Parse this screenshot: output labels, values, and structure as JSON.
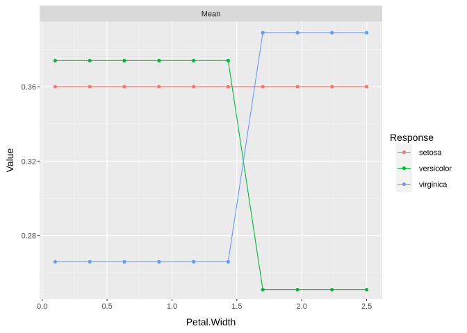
{
  "chart_data": {
    "type": "line",
    "facet_label": "Mean",
    "xlabel": "Petal.Width",
    "ylabel": "Value",
    "x": [
      0.1,
      0.367,
      0.633,
      0.9,
      1.167,
      1.433,
      1.7,
      1.967,
      2.233,
      2.5
    ],
    "xlim": [
      -0.02,
      2.62
    ],
    "ylim": [
      0.246,
      0.395
    ],
    "x_ticks": [
      0.0,
      0.5,
      1.0,
      1.5,
      2.0,
      2.5
    ],
    "x_tick_labels": [
      "0.0",
      "0.5",
      "1.0",
      "1.5",
      "2.0",
      "2.5"
    ],
    "y_ticks": [
      0.28,
      0.32,
      0.36
    ],
    "y_tick_labels": [
      "0.28",
      "0.32",
      "0.36"
    ],
    "grid": true,
    "legend": {
      "title": "Response",
      "position": "right"
    },
    "series": [
      {
        "name": "setosa",
        "color": "#F8766D",
        "values": [
          0.36,
          0.36,
          0.36,
          0.36,
          0.36,
          0.36,
          0.36,
          0.36,
          0.36,
          0.36
        ]
      },
      {
        "name": "versicolor",
        "color": "#00BA38",
        "values": [
          0.374,
          0.374,
          0.374,
          0.374,
          0.374,
          0.374,
          0.251,
          0.251,
          0.251,
          0.251
        ]
      },
      {
        "name": "virginica",
        "color": "#619CFF",
        "values": [
          0.266,
          0.266,
          0.266,
          0.266,
          0.266,
          0.266,
          0.389,
          0.389,
          0.389,
          0.389
        ]
      }
    ]
  }
}
